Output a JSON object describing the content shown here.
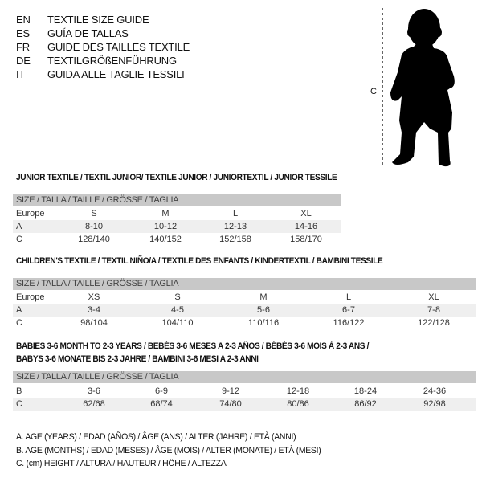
{
  "languages": [
    {
      "code": "EN",
      "text": "TEXTILE SIZE GUIDE"
    },
    {
      "code": "ES",
      "text": "GUÍA DE TALLAS"
    },
    {
      "code": "FR",
      "text": "GUIDE DES TAILLES TEXTILE"
    },
    {
      "code": "DE",
      "text": "TEXTILGRÖßENFÜHRUNG"
    },
    {
      "code": "IT",
      "text": "GUIDA ALLE TAGLIE TESSILI"
    }
  ],
  "figure": {
    "measure_label": "C",
    "icon": "child-silhouette"
  },
  "size_header": "SIZE / TALLA / TAILLE / GRÖSSE / TAGLIA",
  "junior": {
    "title": "JUNIOR TEXTILE / TEXTIL JUNIOR/ TEXTILE JUNIOR / JUNIORTEXTIL / JUNIOR TESSILE",
    "rows": [
      {
        "label": "Europe",
        "cells": [
          "S",
          "M",
          "L",
          "XL"
        ]
      },
      {
        "label": "A",
        "cells": [
          "8-10",
          "10-12",
          "12-13",
          "14-16"
        ]
      },
      {
        "label": "C",
        "cells": [
          "128/140",
          "140/152",
          "152/158",
          "158/170"
        ]
      }
    ]
  },
  "children": {
    "title": "CHILDREN'S TEXTILE / TEXTIL NIÑO/A / TEXTILE DES ENFANTS / KINDERTEXTIL / BAMBINI TESSILE",
    "rows": [
      {
        "label": "Europe",
        "cells": [
          "XS",
          "S",
          "M",
          "L",
          "XL"
        ]
      },
      {
        "label": "A",
        "cells": [
          "3-4",
          "4-5",
          "5-6",
          "6-7",
          "7-8"
        ]
      },
      {
        "label": "C",
        "cells": [
          "98/104",
          "104/110",
          "110/116",
          "116/122",
          "122/128"
        ]
      }
    ]
  },
  "babies": {
    "title_line1": "BABIES 3-6 MONTH TO 2-3 YEARS / BEBÉS 3-6 MESES A 2-3 AÑOS / BÉBÉS 3-6 MOIS À 2-3 ANS /",
    "title_line2": "BABYS 3-6 MONATE BIS 2-3 JAHRE / BAMBINI 3-6 MESI A 2-3 ANNI",
    "rows": [
      {
        "label": "B",
        "cells": [
          "3-6",
          "6-9",
          "9-12",
          "12-18",
          "18-24",
          "24-36"
        ]
      },
      {
        "label": "C",
        "cells": [
          "62/68",
          "68/74",
          "74/80",
          "80/86",
          "86/92",
          "92/98"
        ]
      }
    ]
  },
  "legend": [
    "A. AGE (YEARS) / EDAD (AÑOS) / ÂGE (ANS) / ALTER (JAHRE) / ETÀ (ANNI)",
    "B. AGE (MONTHS) / EDAD (MESES) / ÂGE (MOIS) / ALTER (MONATE) / ETÀ (MESI)",
    "C. (cm) HEIGHT / ALTURA / HAUTEUR / HÖHE / ALTEZZA"
  ],
  "colors": {
    "header_bg": "#c8c8c8",
    "row_shade": "#efefef"
  }
}
